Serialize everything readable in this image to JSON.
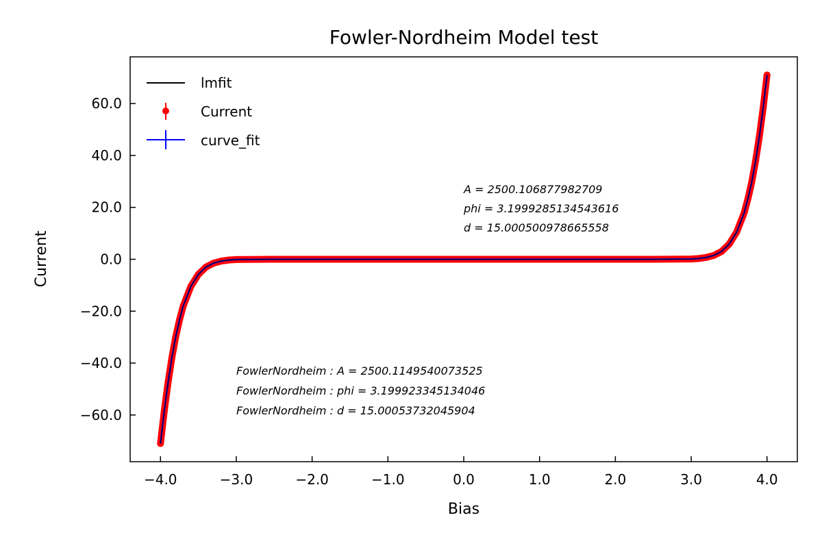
{
  "chart_data": {
    "type": "line",
    "title": "Fowler-Nordheim Model test",
    "xlabel": "Bias",
    "ylabel": "Current",
    "xlim": [
      -4.4,
      4.4
    ],
    "ylim": [
      -78,
      78
    ],
    "xticks": [
      -4.0,
      -3.0,
      -2.0,
      -1.0,
      0.0,
      1.0,
      2.0,
      3.0,
      4.0
    ],
    "xtick_labels": [
      "−4.0",
      "−3.0",
      "−2.0",
      "−1.0",
      "0.0",
      "1.0",
      "2.0",
      "3.0",
      "4.0"
    ],
    "yticks": [
      -60,
      -40,
      -20,
      0,
      20,
      40,
      60
    ],
    "ytick_labels": [
      "−60.0",
      "−40.0",
      "−20.0",
      "0.0",
      "20.0",
      "40.0",
      "60.0"
    ],
    "grid": false,
    "legend_position": "top-left",
    "series": [
      {
        "name": "lmfit",
        "style": "line",
        "color": "#000000"
      },
      {
        "name": "Current",
        "style": "errorbar-markers",
        "color": "#ff0000"
      },
      {
        "name": "curve_fit",
        "style": "errorbar-line",
        "color": "#0000ff"
      }
    ],
    "x": [
      -4.0,
      -3.95,
      -3.9,
      -3.85,
      -3.8,
      -3.75,
      -3.7,
      -3.6,
      -3.5,
      -3.4,
      -3.3,
      -3.2,
      -3.1,
      -3.0,
      -2.5,
      -2.0,
      -1.0,
      0.0,
      1.0,
      2.0,
      2.5,
      3.0,
      3.1,
      3.2,
      3.3,
      3.4,
      3.5,
      3.6,
      3.7,
      3.75,
      3.8,
      3.85,
      3.9,
      3.95,
      4.0
    ],
    "y": [
      -71.0,
      -58.5,
      -47.5,
      -38.0,
      -30.0,
      -23.5,
      -18.0,
      -10.5,
      -5.8,
      -3.0,
      -1.5,
      -0.7,
      -0.3,
      -0.1,
      0.0,
      0.0,
      0.0,
      0.0,
      0.0,
      0.0,
      0.0,
      0.1,
      0.3,
      0.7,
      1.5,
      3.0,
      5.8,
      10.5,
      18.0,
      23.5,
      30.0,
      38.0,
      47.5,
      58.5,
      71.0
    ],
    "annotations": {
      "lmfit_params": [
        "A = 2500.106877982709",
        "phi = 3.1999285134543616",
        "d = 15.000500978665558"
      ],
      "curve_fit_params": [
        "FowlerNordheim : A = 2500.1149540073525",
        "FowlerNordheim : phi = 3.199923345134046",
        "FowlerNordheim : d = 15.00053732045904"
      ]
    }
  }
}
